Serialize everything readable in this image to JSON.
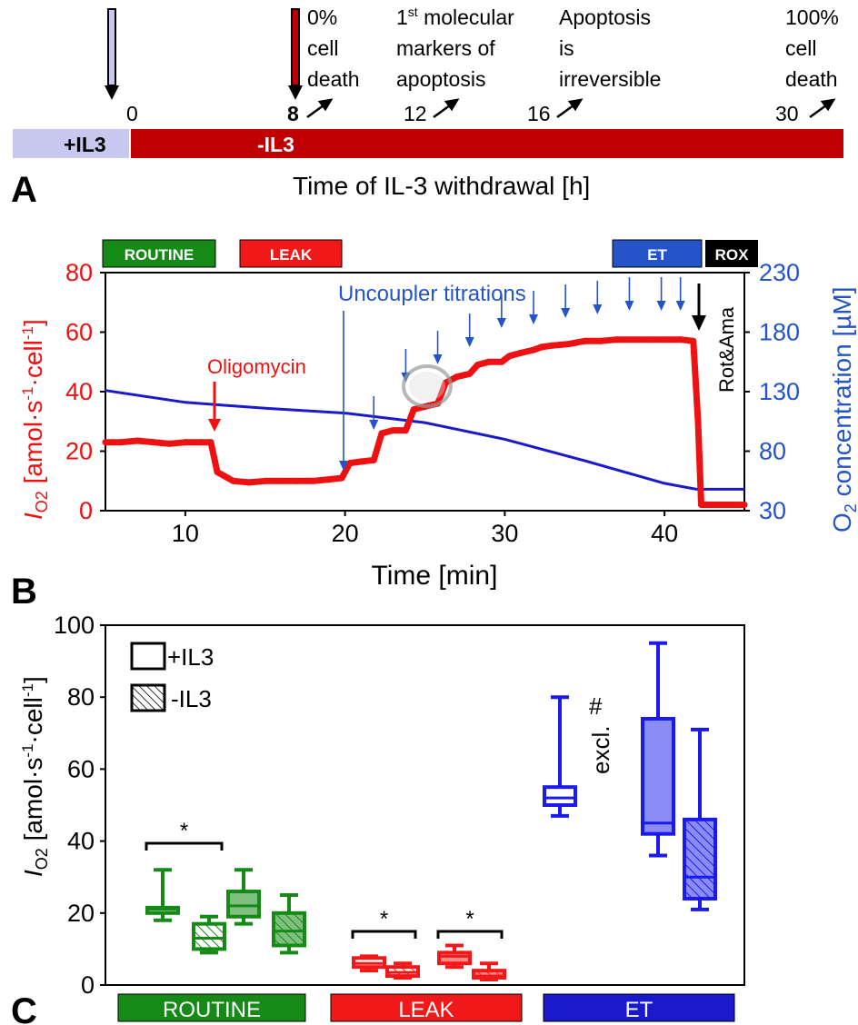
{
  "colors": {
    "plus_il3": "#c8c8f0",
    "minus_il3": "#c00000",
    "routine": "#168a16",
    "leak": "#f01818",
    "et": "#2454c8",
    "rox": "#000000",
    "o2_line": "#1a1acc",
    "flux": "#ee1111",
    "box_blue": "#1a1aee"
  },
  "panelA": {
    "letter": "A",
    "bar_left_label": "+IL3",
    "bar_right_label": "-IL3",
    "axis_title": "Time of IL-3 withdrawal [h]",
    "tick_0": "0",
    "events": [
      {
        "tick": "8",
        "l1": "0%",
        "l2": "cell",
        "l3": "death"
      },
      {
        "tick": "12",
        "l1": "1",
        "sup": "st",
        "l1b": " molecular",
        "l2": "markers  of",
        "l3": "apoptosis"
      },
      {
        "tick": "16",
        "l1": "Apoptosis",
        "l2": "is",
        "l3": "irreversible"
      },
      {
        "tick": "30",
        "l1": "100%",
        "l2": "cell",
        "l3": "death"
      }
    ]
  },
  "panelB": {
    "letter": "B",
    "state_boxes": [
      "ROUTINE",
      "LEAK",
      "ET",
      "ROX"
    ],
    "ylabel_main": "I",
    "ylabel_sub": "O2",
    "ylabel_rest": " [amol·s",
    "ylabel_exp1": "-1",
    "ylabel_mid": "·cell",
    "ylabel_exp2": "-1",
    "ylabel_end": "]",
    "y2label_pre": "O",
    "y2label_sub": "2",
    "y2label_rest": " concentration [µM]",
    "xlabel": "Time [min]",
    "annot_oligomycin": "Oligomycin",
    "annot_uncoupler": "Uncoupler titrations",
    "annot_rotama": "Rot&Ama",
    "y_ticks": [
      "0",
      "20",
      "40",
      "60",
      "80"
    ],
    "y2_ticks": [
      "30",
      "80",
      "130",
      "180",
      "230"
    ],
    "x_ticks": [
      "10",
      "20",
      "30",
      "40"
    ]
  },
  "panelC": {
    "letter": "C",
    "ylabel_main": "I",
    "ylabel_sub": "O2",
    "ylabel_rest": " [amol·s",
    "ylabel_exp1": "-1",
    "ylabel_mid": "·cell",
    "ylabel_exp2": "-1",
    "ylabel_end": "]",
    "legend_plus": "+IL3",
    "legend_minus": "-IL3",
    "y_ticks": [
      "0",
      "20",
      "40",
      "60",
      "80",
      "100"
    ],
    "star": "*",
    "hash": "#",
    "excl": "excl.",
    "group_labels": [
      "ROUTINE",
      "LEAK",
      "ET"
    ]
  },
  "chart_data": [
    {
      "type": "line",
      "panel": "B",
      "xlabel": "Time [min]",
      "ylabel": "IO2 [amol·s-1·cell-1]",
      "y2label": "O2 concentration [µM]",
      "xlim": [
        5,
        45
      ],
      "ylim": [
        0,
        80
      ],
      "y2lim": [
        30,
        230
      ],
      "series": [
        {
          "axis": "left",
          "x": [
            5,
            6,
            7,
            8,
            9,
            10,
            11,
            11.6,
            12,
            13,
            14,
            15,
            16,
            17,
            18,
            19,
            19.8,
            20.3,
            21,
            21.8,
            22.3,
            23,
            23.8,
            24.3,
            25,
            25.8,
            26.3,
            27,
            27.8,
            28.3,
            29,
            29.8,
            30.3,
            31,
            31.8,
            32.3,
            33,
            34,
            35,
            36,
            37,
            38,
            39,
            40,
            41,
            41.8,
            42.1,
            42.3,
            43,
            44,
            45
          ],
          "values": [
            23,
            23,
            23.5,
            23,
            22.5,
            23,
            23,
            23,
            13,
            10,
            9.5,
            10,
            10,
            10,
            10,
            10.5,
            11,
            16,
            16.5,
            17,
            26,
            27,
            27,
            34,
            35,
            36,
            43,
            45,
            46,
            49,
            50,
            50,
            52,
            53,
            54,
            55,
            55.5,
            56,
            57,
            57,
            57.5,
            57.5,
            57.5,
            57.5,
            57.5,
            57,
            30,
            2,
            2,
            2,
            2
          ]
        },
        {
          "axis": "right",
          "x": [
            5,
            10,
            15,
            20,
            25,
            30,
            35,
            40,
            42,
            45
          ],
          "values": [
            131,
            121,
            116,
            112,
            104,
            90,
            72,
            53,
            48,
            48
          ]
        }
      ]
    },
    {
      "type": "box",
      "panel": "C",
      "ylabel": "IO2 [amol·s-1·cell-1]",
      "ylim": [
        0,
        100
      ],
      "categories": [
        "ROUTINE",
        "ROUTINE",
        "ROUTINE",
        "ROUTINE",
        "LEAK",
        "LEAK",
        "LEAK",
        "LEAK",
        "ET",
        "ET",
        "ET",
        "ET"
      ],
      "boxes": [
        {
          "group": "ROUTINE",
          "hatched": false,
          "fill": "none",
          "min": 18,
          "q1": 20,
          "median": 21,
          "q3": 21.5,
          "max": 32
        },
        {
          "group": "ROUTINE",
          "hatched": true,
          "fill": "none",
          "min": 9,
          "q1": 10,
          "median": 13,
          "q3": 17,
          "max": 19
        },
        {
          "group": "ROUTINE",
          "hatched": false,
          "fill": "light",
          "min": 17,
          "q1": 19,
          "median": 22,
          "q3": 26,
          "max": 32
        },
        {
          "group": "ROUTINE",
          "hatched": true,
          "fill": "light",
          "min": 9,
          "q1": 11,
          "median": 15,
          "q3": 20,
          "max": 25
        },
        {
          "group": "LEAK",
          "hatched": false,
          "fill": "none",
          "min": 4,
          "q1": 5,
          "median": 6,
          "q3": 7.5,
          "max": 8
        },
        {
          "group": "LEAK",
          "hatched": true,
          "fill": "none",
          "min": 2,
          "q1": 2.5,
          "median": 3.5,
          "q3": 5,
          "max": 6
        },
        {
          "group": "LEAK",
          "hatched": false,
          "fill": "light",
          "min": 5,
          "q1": 6,
          "median": 8,
          "q3": 9,
          "max": 11
        },
        {
          "group": "LEAK",
          "hatched": true,
          "fill": "light",
          "min": 1.5,
          "q1": 2,
          "median": 2.5,
          "q3": 4,
          "max": 6
        },
        {
          "group": "ET",
          "hatched": false,
          "fill": "none",
          "min": 47,
          "q1": 50,
          "median": 52,
          "q3": 55,
          "max": 80
        },
        {
          "group": "ET",
          "hatched": true,
          "fill": "none",
          "excluded": true
        },
        {
          "group": "ET",
          "hatched": false,
          "fill": "light",
          "min": 36,
          "q1": 42,
          "median": 45,
          "q3": 74,
          "max": 95
        },
        {
          "group": "ET",
          "hatched": true,
          "fill": "light",
          "min": 21,
          "q1": 24,
          "median": 30,
          "q3": 46,
          "max": 71
        }
      ],
      "significance": [
        {
          "between": [
            0,
            1
          ],
          "label": "*"
        },
        {
          "between": [
            4,
            5
          ],
          "label": "*"
        },
        {
          "between": [
            6,
            7
          ],
          "label": "*"
        }
      ]
    }
  ]
}
